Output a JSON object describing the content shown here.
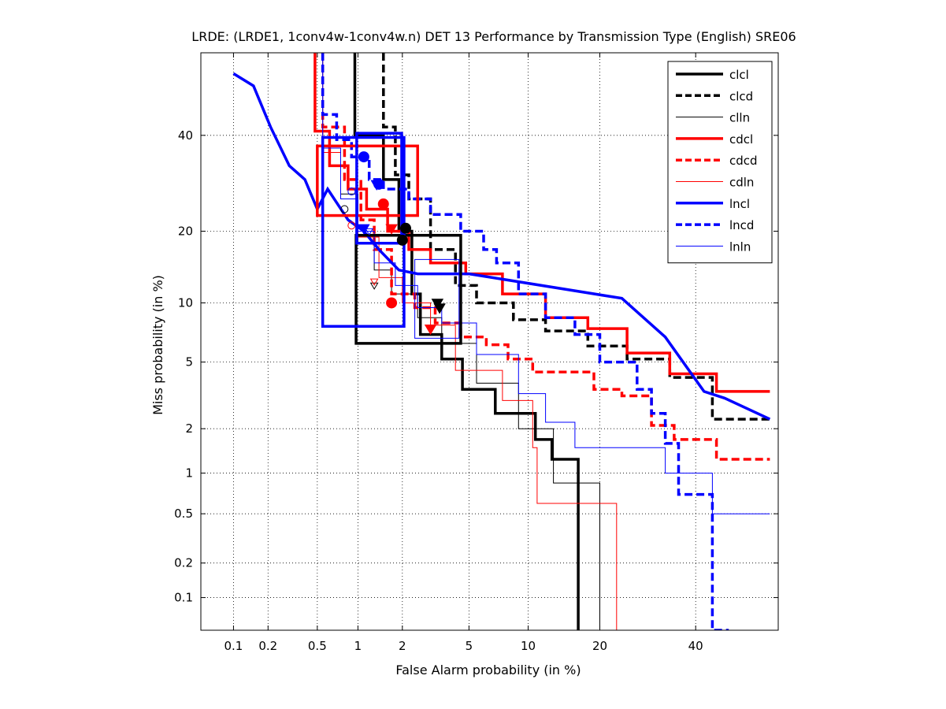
{
  "chart_data": {
    "type": "line",
    "title": "LRDE: (LRDE1, 1conv4w-1conv4w.n) DET 13 Performance by Transmission Type (English) SRE06",
    "xlabel": "False Alarm probability (in %)",
    "ylabel": "Miss probability (in %)",
    "xscale": "normal-deviate (probit)",
    "yscale": "normal-deviate (probit)",
    "xlim": [
      0.05,
      60
    ],
    "ylim": [
      0.05,
      60
    ],
    "x_ticks": [
      "0.1",
      "0.2",
      "0.5",
      "1",
      "2",
      "5",
      "10",
      "20",
      "40"
    ],
    "x_tick_values": [
      0.1,
      0.2,
      0.5,
      1,
      2,
      5,
      10,
      20,
      40
    ],
    "y_ticks": [
      "0.1",
      "0.2",
      "0.5",
      "1",
      "2",
      "5",
      "10",
      "20",
      "40"
    ],
    "y_tick_values": [
      0.1,
      0.2,
      0.5,
      1,
      2,
      5,
      10,
      20,
      40
    ],
    "grid": true,
    "legend_position": "top-right",
    "series": [
      {
        "name": "clcl",
        "color": "#000000",
        "style": "solid",
        "weight": "thick",
        "x": [
          0.95,
          0.95,
          1.5,
          1.5,
          1.9,
          1.9,
          2.3,
          2.3,
          2.6,
          2.6,
          3.5,
          3.5,
          4.6,
          4.6,
          6.9,
          6.9,
          10.8,
          10.8,
          12.8,
          12.8,
          16.5,
          16.5
        ],
        "y": [
          60,
          40,
          40,
          30,
          30,
          20,
          20,
          11,
          11,
          7.0,
          7.0,
          5.2,
          5.2,
          3.5,
          3.5,
          2.5,
          2.5,
          1.7,
          1.7,
          1.25,
          1.25,
          0.05
        ],
        "act_point": [
          2.0,
          18.5
        ],
        "min_point": [
          3.3,
          10.0
        ],
        "ci_box": {
          "x": [
            0.97,
            4.5
          ],
          "y": [
            6.3,
            19.3
          ]
        }
      },
      {
        "name": "clcd",
        "color": "#000000",
        "style": "dashed",
        "weight": "thick",
        "x": [
          1.5,
          1.5,
          1.8,
          1.8,
          2.2,
          2.2,
          3.0,
          3.0,
          4.2,
          4.2,
          5.5,
          5.5,
          8.5,
          8.5,
          12,
          12,
          18,
          18,
          25,
          25,
          34,
          34,
          44,
          44,
          58
        ],
        "y": [
          60,
          42,
          42,
          31,
          31,
          26,
          26,
          17,
          17,
          12,
          12,
          10,
          10,
          8.3,
          8.3,
          7.3,
          7.3,
          6.1,
          6.1,
          5.2,
          5.2,
          4.1,
          4.1,
          2.3,
          2.3
        ],
        "act_point": [
          2.1,
          20.5
        ],
        "min_point": [
          3.4,
          9.5
        ]
      },
      {
        "name": "clln",
        "color": "#000000",
        "style": "solid",
        "weight": "thin",
        "x": [
          0.55,
          0.55,
          0.75,
          0.75,
          1.0,
          1.0,
          1.3,
          1.3,
          1.7,
          1.7,
          2.5,
          2.5,
          3.5,
          3.5,
          5.5,
          5.5,
          9,
          9,
          13,
          13,
          20,
          20
        ],
        "y": [
          60,
          37,
          37,
          27,
          27,
          18,
          18,
          14,
          14,
          11,
          11,
          8.5,
          8.5,
          6.3,
          6.3,
          3.8,
          3.8,
          2.0,
          2.0,
          0.85,
          0.85,
          0.05
        ],
        "act_point": [
          0.8,
          24.0
        ],
        "min_point": [
          1.3,
          12.0
        ]
      },
      {
        "name": "cdcl",
        "color": "#ff0000",
        "style": "solid",
        "weight": "thick",
        "x": [
          0.48,
          0.48,
          0.62,
          0.62,
          0.85,
          0.85,
          1.15,
          1.15,
          1.6,
          1.6,
          2.2,
          2.2,
          3.0,
          3.0,
          4.8,
          4.8,
          7.5,
          7.5,
          12,
          12,
          18,
          18,
          25,
          25,
          34,
          34,
          45,
          45,
          58
        ],
        "y": [
          60,
          41,
          41,
          33,
          33,
          28,
          28,
          24,
          24,
          20,
          20,
          17,
          17,
          15,
          15,
          13.5,
          13.5,
          11,
          11,
          8.5,
          8.5,
          7.5,
          7.5,
          5.6,
          5.6,
          4.3,
          4.3,
          3.4,
          3.4
        ],
        "act_point": [
          1.5,
          25.0
        ],
        "min_point": [
          1.7,
          20.5
        ],
        "ci_box": {
          "x": [
            0.5,
            2.5
          ],
          "y": [
            22.8,
            37.5
          ]
        }
      },
      {
        "name": "cdcd",
        "color": "#ff0000",
        "style": "dashed",
        "weight": "thick",
        "x": [
          0.55,
          0.55,
          0.8,
          0.8,
          1.05,
          1.05,
          1.3,
          1.3,
          1.7,
          1.7,
          2.4,
          2.4,
          3.2,
          3.2,
          4.5,
          4.5,
          6.2,
          6.2,
          8.0,
          8.0,
          10.5,
          10.5,
          19,
          19,
          24,
          24,
          30,
          30,
          35,
          35,
          45,
          45,
          58
        ],
        "y": [
          60,
          42,
          42,
          30,
          30,
          22,
          22,
          17,
          17,
          11,
          11,
          9.5,
          9.5,
          8.0,
          8.0,
          6.8,
          6.8,
          6.2,
          6.2,
          5.2,
          5.2,
          4.4,
          4.4,
          3.5,
          3.5,
          3.2,
          3.2,
          2.1,
          2.1,
          1.7,
          1.7,
          1.25,
          1.25
        ],
        "act_point": [
          1.7,
          10.0
        ],
        "min_point": [
          3.0,
          7.5
        ]
      },
      {
        "name": "cdln",
        "color": "#ff0000",
        "style": "solid",
        "weight": "thin",
        "x": [
          0.55,
          0.55,
          0.75,
          0.75,
          1.0,
          1.0,
          1.4,
          1.4,
          2.0,
          2.0,
          3.0,
          3.0,
          4.2,
          4.2,
          7.5,
          7.5,
          10.5,
          10.5,
          11,
          11,
          15,
          15,
          23,
          23
        ],
        "y": [
          60,
          36,
          36,
          26,
          26,
          19,
          19,
          13,
          13,
          10,
          10,
          7.8,
          7.8,
          4.5,
          4.5,
          3.0,
          3.0,
          1.5,
          1.5,
          0.6,
          0.6,
          0.6,
          0.6,
          0.05
        ],
        "act_point": [
          0.9,
          21.0
        ],
        "min_point": [
          1.3,
          12.5
        ]
      },
      {
        "name": "lncl",
        "color": "#0000ff",
        "style": "solid",
        "weight": "thick",
        "x": [
          0.1,
          0.1,
          0.15,
          0.15,
          0.21,
          0.21,
          0.3,
          0.3,
          0.4,
          0.4,
          0.5,
          0.5,
          0.6,
          0.6,
          0.85,
          0.85,
          1.1,
          1.1,
          1.4,
          1.4,
          1.9,
          1.9,
          2.5,
          2.5,
          3.5,
          3.5,
          5.0,
          5.0,
          24,
          24,
          33,
          33,
          42,
          42,
          47,
          47,
          58
        ],
        "y": [
          55,
          55,
          52,
          52,
          42,
          42,
          33,
          33,
          30,
          30,
          24,
          24,
          28,
          28,
          22,
          22,
          20,
          20,
          17,
          17,
          14,
          14,
          13.5,
          13.5,
          13.5,
          13.5,
          13.5,
          13.5,
          10.5,
          10.5,
          6.8,
          6.8,
          3.4,
          3.4,
          3.1,
          3.1,
          2.3
        ],
        "act_point": [
          1.1,
          35.0
        ],
        "min_point": [
          1.1,
          20.5
        ],
        "ci_box": {
          "x": [
            0.55,
            2.05
          ],
          "y": [
            7.7,
            39.5
          ]
        }
      },
      {
        "name": "lncd",
        "color": "#0000ff",
        "style": "dashed",
        "weight": "thick",
        "x": [
          0.55,
          0.55,
          0.7,
          0.7,
          0.9,
          0.9,
          1.2,
          1.2,
          1.5,
          1.5,
          2.2,
          2.2,
          3.0,
          3.0,
          4.5,
          4.5,
          6.0,
          6.0,
          7.0,
          7.0,
          9.0,
          9.0,
          12,
          12,
          16,
          16,
          20,
          20,
          27,
          27,
          30,
          30,
          33,
          33,
          36,
          36,
          44,
          44,
          48,
          48
        ],
        "y": [
          60,
          45,
          45,
          39,
          39,
          35,
          35,
          30,
          30,
          28,
          28,
          26,
          26,
          23,
          23,
          20,
          20,
          17,
          17,
          15,
          15,
          11,
          11,
          8.5,
          8.5,
          7.0,
          7.0,
          5.0,
          5.0,
          3.5,
          3.5,
          2.5,
          2.5,
          1.6,
          1.6,
          0.7,
          0.7,
          0.05,
          0.05,
          0.05
        ],
        "act_point": [
          1.4,
          29.0
        ],
        "min_point": [
          1.35,
          29.0
        ],
        "ci_box": {
          "x": [
            0.98,
            1.98
          ],
          "y": [
            18.0,
            40.5
          ]
        }
      },
      {
        "name": "lnln",
        "color": "#0000ff",
        "style": "solid",
        "weight": "thin",
        "x": [
          0.55,
          0.55,
          0.75,
          0.75,
          1.0,
          1.0,
          1.3,
          1.3,
          1.8,
          1.8,
          2.5,
          2.5,
          3.5,
          3.5,
          5.5,
          5.5,
          9.0,
          9.0,
          12,
          12,
          16,
          16,
          33,
          33,
          44,
          44,
          58
        ],
        "y": [
          60,
          37,
          37,
          26,
          26,
          20,
          20,
          15,
          15,
          12,
          12,
          9.5,
          9.5,
          8.0,
          8.0,
          5.5,
          5.5,
          3.3,
          3.3,
          2.2,
          2.2,
          1.5,
          1.5,
          1.0,
          1.0,
          0.5,
          0.5
        ],
        "act_point": [
          0.9,
          27.5
        ],
        "min_point": [
          1.2,
          20.0
        ],
        "ci_box": {
          "x": [
            2.4,
            4.4
          ],
          "y": [
            6.7,
            15.5
          ]
        }
      }
    ]
  }
}
